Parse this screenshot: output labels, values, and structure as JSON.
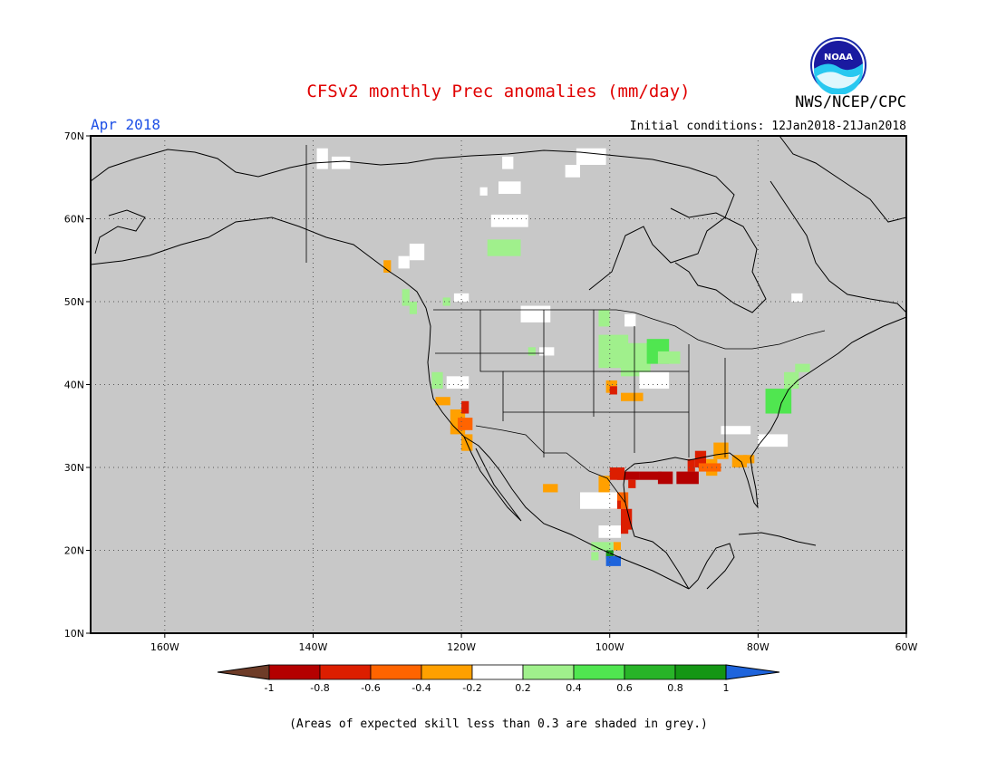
{
  "header": {
    "title": "CFSv2 monthly Prec anomalies (mm/day)",
    "org": "NWS/NCEP/CPC",
    "month": "Apr 2018",
    "initial_conditions": "Initial conditions: 12Jan2018-21Jan2018",
    "logo_text": "NOAA"
  },
  "map": {
    "lon_range": [
      -170,
      -60
    ],
    "lat_range": [
      10,
      70
    ],
    "x_ticks": [
      "160W",
      "140W",
      "120W",
      "100W",
      "80W",
      "60W"
    ],
    "y_ticks": [
      "70N",
      "60N",
      "50N",
      "40N",
      "30N",
      "20N",
      "10N"
    ],
    "background_color": "#c8c8c8",
    "grid": "dotted"
  },
  "colorbar": {
    "labels": [
      "-1",
      "-0.8",
      "-0.6",
      "-0.4",
      "-0.2",
      "0.2",
      "0.4",
      "0.6",
      "0.8",
      "1"
    ],
    "colors": [
      "#6e3c28",
      "#b40000",
      "#dc1e00",
      "#ff6400",
      "#ffa000",
      "#ffffff",
      "#a0f08c",
      "#50e650",
      "#28b428",
      "#149614",
      "#1e64dc"
    ]
  },
  "footnote": "(Areas of expected skill less than 0.3 are shaded in grey.)",
  "anomalies": [
    {
      "lon": -139.5,
      "lat": 68.5,
      "w": 1.5,
      "h": 2.5,
      "v": 0
    },
    {
      "lon": -137.5,
      "lat": 67.5,
      "w": 2.5,
      "h": 1.5,
      "v": 0
    },
    {
      "lon": -104.5,
      "lat": 68.5,
      "w": 4,
      "h": 2,
      "v": 0
    },
    {
      "lon": -106,
      "lat": 66.5,
      "w": 2,
      "h": 1.5,
      "v": 0
    },
    {
      "lon": -114.5,
      "lat": 67.5,
      "w": 1.5,
      "h": 1.5,
      "v": 0
    },
    {
      "lon": -115,
      "lat": 64.5,
      "w": 3,
      "h": 1.5,
      "v": 0
    },
    {
      "lon": -117.5,
      "lat": 63.8,
      "w": 1,
      "h": 1,
      "v": 0
    },
    {
      "lon": -116,
      "lat": 60.5,
      "w": 5,
      "h": 1.5,
      "v": 0
    },
    {
      "lon": -116.5,
      "lat": 57.5,
      "w": 4.5,
      "h": 2,
      "v": 0.3
    },
    {
      "lon": -127,
      "lat": 57,
      "w": 2,
      "h": 2,
      "v": 0
    },
    {
      "lon": -128.5,
      "lat": 55.5,
      "w": 1.5,
      "h": 1.5,
      "v": 0
    },
    {
      "lon": -130.5,
      "lat": 55,
      "w": 1,
      "h": 1.5,
      "v": -0.3
    },
    {
      "lon": -128,
      "lat": 51.5,
      "w": 1,
      "h": 2,
      "v": 0.3
    },
    {
      "lon": -127,
      "lat": 50,
      "w": 1,
      "h": 1.5,
      "v": 0.3
    },
    {
      "lon": -122.5,
      "lat": 50.5,
      "w": 1,
      "h": 1,
      "v": 0.3
    },
    {
      "lon": -121,
      "lat": 51,
      "w": 2,
      "h": 1,
      "v": 0
    },
    {
      "lon": -112,
      "lat": 49.5,
      "w": 4,
      "h": 2,
      "v": 0
    },
    {
      "lon": -101.5,
      "lat": 49,
      "w": 1.5,
      "h": 2,
      "v": 0.3
    },
    {
      "lon": -101.5,
      "lat": 46,
      "w": 4,
      "h": 4,
      "v": 0.3
    },
    {
      "lon": -98.5,
      "lat": 45,
      "w": 4,
      "h": 4,
      "v": 0.3
    },
    {
      "lon": -95,
      "lat": 45.5,
      "w": 3,
      "h": 3,
      "v": 0.5
    },
    {
      "lon": -93.5,
      "lat": 44,
      "w": 3,
      "h": 1.5,
      "v": 0.3
    },
    {
      "lon": -98,
      "lat": 48.5,
      "w": 1.5,
      "h": 1.5,
      "v": 0
    },
    {
      "lon": -96,
      "lat": 41.5,
      "w": 4,
      "h": 2,
      "v": 0
    },
    {
      "lon": -101,
      "lat": 44,
      "w": 1,
      "h": 1.5,
      "v": 0.3
    },
    {
      "lon": -100.5,
      "lat": 40.5,
      "w": 1.5,
      "h": 1.5,
      "v": -0.3
    },
    {
      "lon": -100,
      "lat": 39.8,
      "w": 1,
      "h": 1,
      "v": -0.7
    },
    {
      "lon": -98.5,
      "lat": 39,
      "w": 3,
      "h": 1,
      "v": -0.3
    },
    {
      "lon": -109.5,
      "lat": 44.5,
      "w": 2,
      "h": 1,
      "v": 0
    },
    {
      "lon": -111,
      "lat": 44.5,
      "w": 1,
      "h": 1,
      "v": 0.3
    },
    {
      "lon": -124,
      "lat": 41.5,
      "w": 1.5,
      "h": 2,
      "v": 0.3
    },
    {
      "lon": -122,
      "lat": 41,
      "w": 3,
      "h": 1.5,
      "v": 0
    },
    {
      "lon": -123.5,
      "lat": 38.5,
      "w": 2,
      "h": 1,
      "v": -0.3
    },
    {
      "lon": -121.5,
      "lat": 37,
      "w": 2,
      "h": 3,
      "v": -0.3
    },
    {
      "lon": -120,
      "lat": 38,
      "w": 1,
      "h": 1.5,
      "v": -0.7
    },
    {
      "lon": -120.5,
      "lat": 36,
      "w": 2,
      "h": 1.5,
      "v": -0.5
    },
    {
      "lon": -120,
      "lat": 34,
      "w": 1.5,
      "h": 2,
      "v": -0.3
    },
    {
      "lon": -79,
      "lat": 39.5,
      "w": 3.5,
      "h": 3,
      "v": 0.5
    },
    {
      "lon": -76.5,
      "lat": 41.5,
      "w": 2,
      "h": 2,
      "v": 0.3
    },
    {
      "lon": -75,
      "lat": 42.5,
      "w": 2,
      "h": 1,
      "v": 0.3
    },
    {
      "lon": -75.5,
      "lat": 51,
      "w": 1.5,
      "h": 1,
      "v": 0
    },
    {
      "lon": -80,
      "lat": 34,
      "w": 4,
      "h": 1.5,
      "v": 0
    },
    {
      "lon": -85,
      "lat": 35,
      "w": 4,
      "h": 1,
      "v": 0
    },
    {
      "lon": -86,
      "lat": 33,
      "w": 2,
      "h": 2,
      "v": -0.3
    },
    {
      "lon": -83.5,
      "lat": 31.5,
      "w": 2,
      "h": 1.5,
      "v": -0.3
    },
    {
      "lon": -82,
      "lat": 31.5,
      "w": 1.5,
      "h": 1,
      "v": -0.3
    },
    {
      "lon": -88.5,
      "lat": 32,
      "w": 1.5,
      "h": 2,
      "v": -0.7
    },
    {
      "lon": -87,
      "lat": 31,
      "w": 1.5,
      "h": 2,
      "v": -0.3
    },
    {
      "lon": -89.5,
      "lat": 31,
      "w": 1,
      "h": 1.5,
      "v": -0.7
    },
    {
      "lon": -88,
      "lat": 30.5,
      "w": 3,
      "h": 1,
      "v": -0.5
    },
    {
      "lon": -91,
      "lat": 29.5,
      "w": 3,
      "h": 1.5,
      "v": -0.9
    },
    {
      "lon": -93.5,
      "lat": 29.5,
      "w": 2,
      "h": 1.5,
      "v": -0.9
    },
    {
      "lon": -96,
      "lat": 29.5,
      "w": 3,
      "h": 1,
      "v": -0.9
    },
    {
      "lon": -99,
      "lat": 29.5,
      "w": 3,
      "h": 1,
      "v": -0.9
    },
    {
      "lon": -100,
      "lat": 30,
      "w": 2,
      "h": 1.5,
      "v": -0.7
    },
    {
      "lon": -101.5,
      "lat": 29,
      "w": 1.5,
      "h": 3,
      "v": -0.3
    },
    {
      "lon": -97.5,
      "lat": 28.5,
      "w": 1,
      "h": 1,
      "v": -0.7
    },
    {
      "lon": -99.5,
      "lat": 27,
      "w": 2,
      "h": 2,
      "v": -0.5
    },
    {
      "lon": -98.5,
      "lat": 25,
      "w": 1.5,
      "h": 2.5,
      "v": -0.7
    },
    {
      "lon": -100,
      "lat": 26,
      "w": 1.5,
      "h": 1,
      "v": -0.7
    },
    {
      "lon": -98.5,
      "lat": 24,
      "w": 1,
      "h": 2,
      "v": -0.7
    },
    {
      "lon": -104,
      "lat": 27,
      "w": 5,
      "h": 2,
      "v": 0
    },
    {
      "lon": -109,
      "lat": 28,
      "w": 2,
      "h": 1,
      "v": -0.3
    },
    {
      "lon": -101.5,
      "lat": 23,
      "w": 3,
      "h": 1.5,
      "v": 0
    },
    {
      "lon": -99.5,
      "lat": 21,
      "w": 1,
      "h": 1,
      "v": -0.3
    },
    {
      "lon": -102.5,
      "lat": 21,
      "w": 3,
      "h": 1,
      "v": 0.3
    },
    {
      "lon": -100.5,
      "lat": 20,
      "w": 1,
      "h": 1,
      "v": 0.9
    },
    {
      "lon": -100.5,
      "lat": 19.3,
      "w": 2,
      "h": 1.2,
      "v": 1.1
    },
    {
      "lon": -102.5,
      "lat": 19.8,
      "w": 1,
      "h": 1,
      "v": 0.3
    }
  ]
}
